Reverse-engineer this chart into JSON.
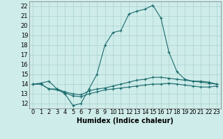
{
  "xlabel": "Humidex (Indice chaleur)",
  "background_color": "#ceecea",
  "line_color": "#1a6b6b",
  "grid_color": "#aed6d3",
  "xlim": [
    -0.5,
    23.5
  ],
  "ylim": [
    11.5,
    22.5
  ],
  "xticks": [
    0,
    1,
    2,
    3,
    4,
    5,
    6,
    7,
    8,
    9,
    10,
    11,
    12,
    13,
    14,
    15,
    16,
    17,
    18,
    19,
    20,
    21,
    22,
    23
  ],
  "yticks": [
    12,
    13,
    14,
    15,
    16,
    17,
    18,
    19,
    20,
    21,
    22
  ],
  "lines": [
    {
      "x": [
        0,
        1,
        2,
        3,
        4,
        5,
        6,
        7,
        8,
        9,
        10,
        11,
        12,
        13,
        14,
        15,
        16,
        17,
        18,
        19,
        20,
        21,
        22,
        23
      ],
      "y": [
        14.0,
        14.1,
        14.3,
        13.5,
        13.0,
        11.8,
        12.0,
        13.5,
        15.0,
        18.0,
        19.3,
        19.5,
        21.2,
        21.5,
        21.7,
        22.1,
        20.8,
        17.3,
        15.3,
        14.5,
        14.3,
        14.3,
        14.2,
        14.0
      ]
    },
    {
      "x": [
        0,
        1,
        2,
        3,
        4,
        5,
        6,
        7,
        8,
        9,
        10,
        11,
        12,
        13,
        14,
        15,
        16,
        17,
        18,
        19,
        20,
        21,
        22,
        23
      ],
      "y": [
        14.0,
        14.0,
        13.5,
        13.5,
        13.2,
        13.0,
        12.9,
        13.3,
        13.5,
        13.6,
        13.8,
        14.0,
        14.2,
        14.4,
        14.5,
        14.7,
        14.7,
        14.6,
        14.5,
        14.4,
        14.3,
        14.2,
        14.1,
        14.0
      ]
    },
    {
      "x": [
        0,
        1,
        2,
        3,
        4,
        5,
        6,
        7,
        8,
        9,
        10,
        11,
        12,
        13,
        14,
        15,
        16,
        17,
        18,
        19,
        20,
        21,
        22,
        23
      ],
      "y": [
        14.0,
        14.0,
        13.5,
        13.4,
        13.1,
        12.8,
        12.7,
        13.0,
        13.2,
        13.4,
        13.5,
        13.6,
        13.7,
        13.8,
        13.9,
        14.0,
        14.0,
        14.1,
        14.0,
        13.9,
        13.8,
        13.7,
        13.7,
        13.8
      ]
    }
  ],
  "xlabel_fontsize": 7,
  "tick_fontsize": 6
}
